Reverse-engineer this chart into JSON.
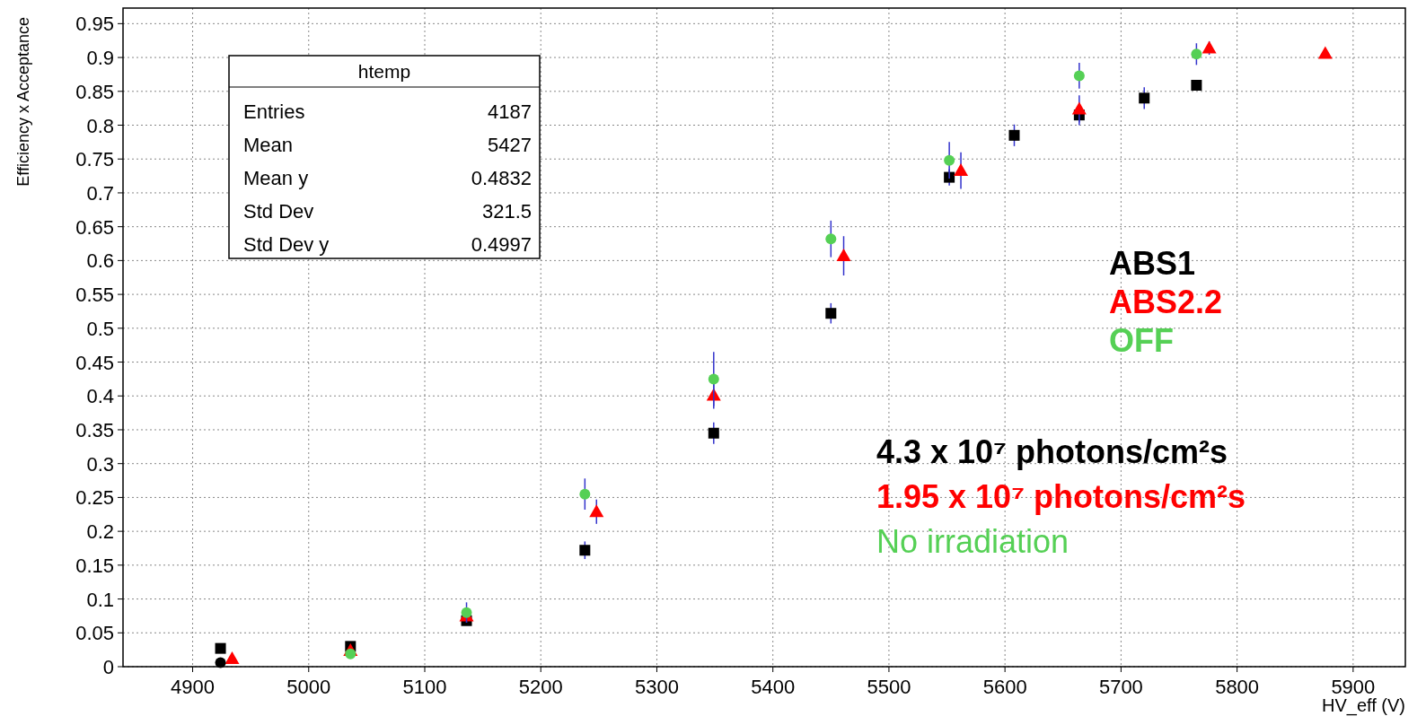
{
  "chart_data": {
    "type": "scatter",
    "xlabel": "HV_eff (V)",
    "ylabel": "Efficiency x Acceptance",
    "xlim": [
      4840,
      5945
    ],
    "xticks": [
      4900,
      5000,
      5100,
      5200,
      5300,
      5400,
      5500,
      5600,
      5700,
      5800,
      5900
    ],
    "ylim": [
      0,
      0.973
    ],
    "yticks": [
      0,
      0.05,
      0.1,
      0.15,
      0.2,
      0.25,
      0.3,
      0.35,
      0.4,
      0.45,
      0.5,
      0.55,
      0.6,
      0.65,
      0.7,
      0.75,
      0.8,
      0.85,
      0.9,
      0.95
    ],
    "grid": true,
    "series": [
      {
        "name": "ABS1",
        "color": "#000000",
        "marker": "square",
        "x": [
          4924,
          5036,
          5136,
          5238,
          5349,
          5450,
          5552,
          5608,
          5664,
          5720,
          5765
        ],
        "values": [
          0.027,
          0.03,
          0.068,
          0.172,
          0.345,
          0.522,
          0.723,
          0.785,
          0.815,
          0.84,
          0.859
        ],
        "errors": [
          null,
          null,
          null,
          0.013,
          0.016,
          0.015,
          0.012,
          0.016,
          0.015,
          0.016,
          null
        ]
      },
      {
        "name": "ABS2.2",
        "color": "#ff0000",
        "marker": "triangle",
        "x": [
          4934,
          5036,
          5136,
          5248,
          5349,
          5461,
          5562,
          5664,
          5776,
          5876
        ],
        "values": [
          0.012,
          0.024,
          0.075,
          0.229,
          0.401,
          0.607,
          0.733,
          0.824,
          0.914,
          0.906
        ],
        "errors": [
          null,
          null,
          0.01,
          0.018,
          0.02,
          0.029,
          0.027,
          0.02,
          0.01,
          null
        ]
      },
      {
        "name": "OFF",
        "color": "#55d055",
        "marker": "circle",
        "x": [
          5036,
          5136,
          5238,
          5349,
          5450,
          5552,
          5664,
          5765
        ],
        "values": [
          0.019,
          0.08,
          0.255,
          0.425,
          0.632,
          0.748,
          0.873,
          0.905
        ],
        "errors": [
          null,
          0.015,
          0.023,
          0.04,
          0.027,
          0.027,
          0.019,
          0.016
        ]
      },
      {
        "color": "#000000",
        "marker": "circle",
        "x": [
          4924
        ],
        "values": [
          0.006
        ]
      }
    ],
    "annotations": [
      "htemp",
      "Entries 4187",
      "Mean 5427",
      "Mean y 0.4832",
      "Std Dev 321.5",
      "Std Dev y 0.4997",
      "4.3 x 10⁷ photons/cm²s",
      "1.95 x 10⁷ photons/cm²s",
      "No irradiation"
    ]
  }
}
